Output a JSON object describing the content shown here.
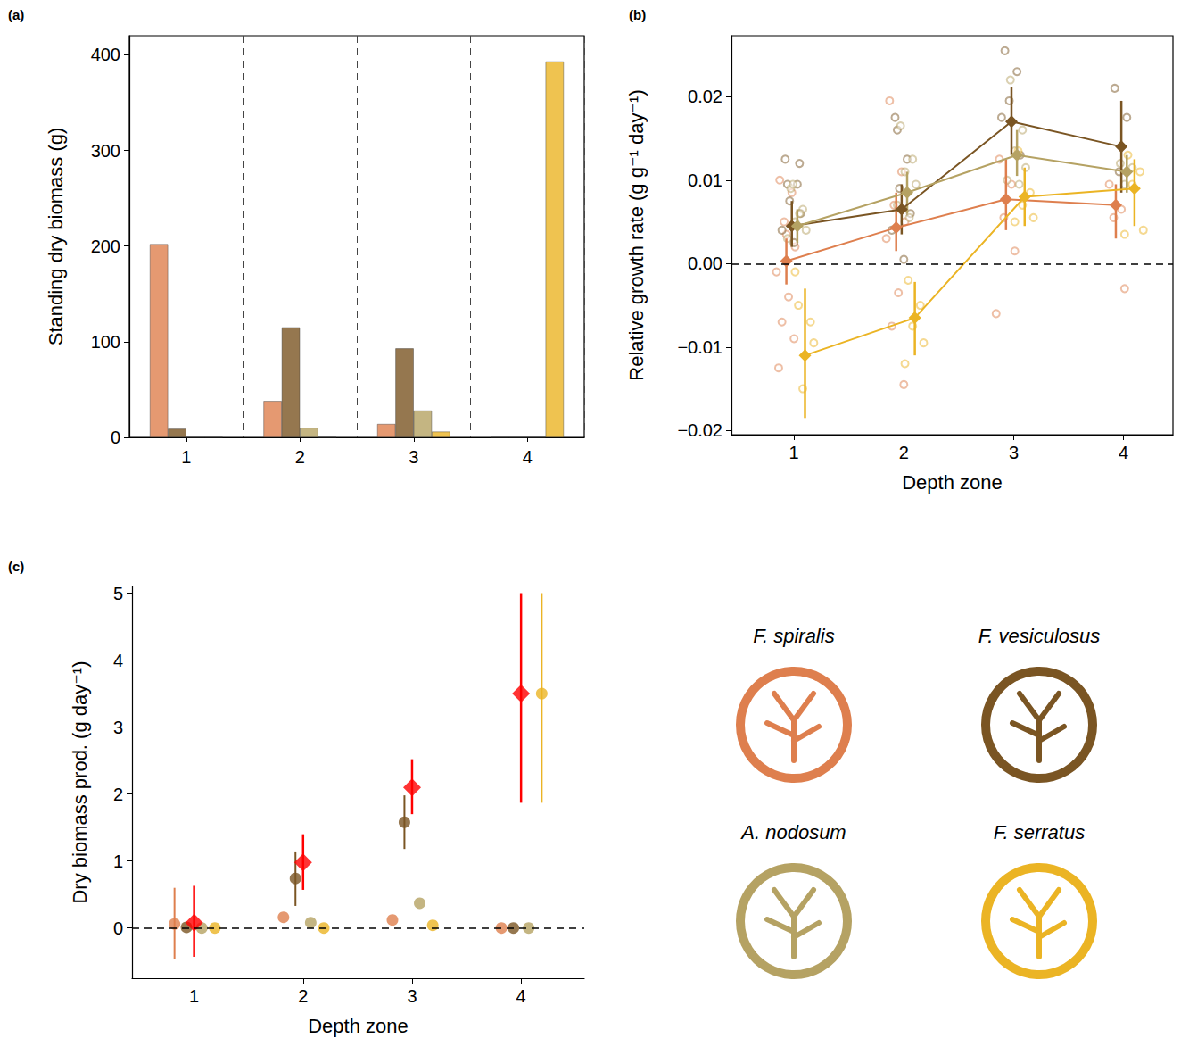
{
  "chart_data": [
    {
      "type": "bar",
      "title": "(a)",
      "ylabel": "Standing dry biomass (g)",
      "categories": [
        "1",
        "2",
        "3",
        "4"
      ],
      "ylim": [
        0,
        420
      ],
      "yticks": [
        0,
        100,
        200,
        300,
        400
      ],
      "legend": "bottom right",
      "series": [
        {
          "name": "F. spiralis",
          "color": "#DE7F4E",
          "values": [
            202,
            38,
            14,
            0
          ]
        },
        {
          "name": "F. vesiculosus",
          "color": "#7A5523",
          "values": [
            9,
            115,
            93,
            0
          ]
        },
        {
          "name": "A. nodosum",
          "color": "#B5A263",
          "values": [
            0,
            10,
            28,
            0
          ]
        },
        {
          "name": "F. serratus",
          "color": "#EBB424",
          "values": [
            0,
            0,
            6,
            393
          ]
        }
      ]
    },
    {
      "type": "line",
      "title": "(b)",
      "xlabel": "Depth zone",
      "ylabel": "Relative growth rate (g g⁻¹ day⁻¹)",
      "x": [
        1,
        2,
        3,
        4
      ],
      "xlim": [
        0.43,
        4.45
      ],
      "xticks": [
        1,
        2,
        3,
        4
      ],
      "ylim": [
        -0.0205,
        0.0273
      ],
      "yticks": [
        {
          "value": -0.02,
          "label": "−0.02"
        },
        {
          "value": -0.01,
          "label": "−0.01"
        },
        {
          "value": 0,
          "label": "0.00"
        },
        0.01,
        0.02
      ],
      "hline": 0,
      "marker": "diamond",
      "series": [
        {
          "name": "F. spiralis",
          "color": "#DE7F4E",
          "values": [
            0.0003,
            0.0043,
            0.0077,
            0.007
          ],
          "error_low": [
            -0.0025,
            0.0015,
            0.004,
            0.003
          ],
          "error_high": [
            0.003,
            0.0085,
            0.0125,
            0.0095
          ],
          "points": [
            [
              0.01,
              0.0085,
              0.005,
              0.002,
              -0.001,
              -0.004,
              -0.007,
              -0.009,
              -0.0125,
              0.0035
            ],
            [
              0.0195,
              0.011,
              0.007,
              0.005,
              0.003,
              -0.0035,
              -0.0075,
              -0.0145
            ],
            [
              0.0125,
              0.0095,
              0.0055,
              0.0015,
              -0.006
            ],
            [
              0.0095,
              0.0065,
              0.0055,
              -0.003
            ]
          ]
        },
        {
          "name": "F. vesiculosus",
          "color": "#7A5523",
          "values": [
            0.0045,
            0.0065,
            0.017,
            0.014
          ],
          "error_low": [
            0.002,
            0.0035,
            0.013,
            0.0085
          ],
          "error_high": [
            0.0075,
            0.0095,
            0.0212,
            0.0195
          ],
          "points": [
            [
              0.0125,
              0.0095,
              0.0075,
              0.006,
              0.004,
              0.0025,
              0.0095,
              0.012
            ],
            [
              0.0175,
              0.0125,
              0.009,
              0.006,
              0.004,
              0.0005,
              0.016
            ],
            [
              0.0255,
              0.023,
              0.0195,
              0.013,
              0.0175
            ],
            [
              0.021,
              0.0175,
              0.011
            ]
          ]
        },
        {
          "name": "A. nodosum",
          "color": "#B5A263",
          "values": [
            0.0045,
            0.0085,
            0.013,
            0.011
          ],
          "error_low": [
            0.0025,
            0.006,
            0.0105,
            0.0085
          ],
          "error_high": [
            0.0065,
            0.011,
            0.016,
            0.013
          ],
          "points": [
            [
              0.009,
              0.0065,
              0.005,
              0.004,
              0.003,
              0.006,
              0.0095
            ],
            [
              0.0165,
              0.0125,
              0.011,
              0.0095,
              0.007,
              0.0055
            ],
            [
              0.022,
              0.016,
              0.0135,
              0.0115,
              0.01,
              0.0095
            ],
            [
              0.012,
              0.0115,
              0.0095
            ]
          ]
        },
        {
          "name": "F. serratus",
          "color": "#EBB424",
          "values": [
            -0.011,
            -0.0065,
            0.008,
            0.009
          ],
          "error_low": [
            -0.0185,
            -0.011,
            0.0045,
            0.0045
          ],
          "error_high": [
            -0.003,
            -0.0022,
            0.0115,
            0.0125
          ],
          "points": [
            [
              -0.005,
              -0.007,
              -0.015,
              -0.0095,
              -0.001
            ],
            [
              -0.002,
              -0.005,
              -0.0075,
              -0.0095,
              -0.012
            ],
            [
              0.0135,
              0.0085,
              0.007,
              0.0055,
              0.005
            ],
            [
              0.013,
              0.011,
              0.0095,
              0.004,
              0.0035
            ]
          ]
        }
      ]
    },
    {
      "type": "scatter",
      "title": "(c)",
      "xlabel": "Depth zone",
      "ylabel": "Dry biomass prod. (g day⁻¹)",
      "x": [
        1,
        2,
        3,
        4
      ],
      "xlim": [
        0.43,
        4.58
      ],
      "xticks": [
        1,
        2,
        3,
        4
      ],
      "ylim": [
        -0.75,
        5.1
      ],
      "yticks": [
        0,
        1,
        2,
        3,
        4,
        5
      ],
      "hline": 0,
      "series": [
        {
          "name": "F. spiralis",
          "color": "#DE7F4E",
          "marker": "circle",
          "values": [
            0.06,
            0.16,
            0.12,
            0
          ],
          "error_low": [
            -0.47,
            null,
            null,
            null
          ],
          "error_high": [
            0.6,
            null,
            null,
            null
          ]
        },
        {
          "name": "F. vesiculosus",
          "color": "#7A5523",
          "marker": "circle",
          "values": [
            0.01,
            0.74,
            1.58,
            0
          ],
          "error_low": [
            null,
            0.33,
            1.18,
            null
          ],
          "error_high": [
            null,
            1.13,
            1.98,
            null
          ]
        },
        {
          "name": "A. nodosum",
          "color": "#B5A263",
          "marker": "circle",
          "values": [
            0,
            0.08,
            0.37,
            0
          ],
          "error_low": [
            null,
            null,
            null,
            null
          ],
          "error_high": [
            null,
            null,
            null,
            null
          ]
        },
        {
          "name": "F. serratus",
          "color": "#EBB424",
          "marker": "circle",
          "values": [
            0,
            0,
            0.04,
            3.5
          ],
          "error_low": [
            null,
            null,
            null,
            1.87
          ],
          "error_high": [
            null,
            null,
            null,
            5.0
          ]
        },
        {
          "color": "#FF0000",
          "marker": "diamond",
          "values": [
            0.08,
            0.98,
            2.1,
            3.5
          ],
          "error_low": [
            -0.43,
            0.57,
            1.7,
            1.87
          ],
          "error_high": [
            0.63,
            1.4,
            2.52,
            5.0
          ]
        }
      ]
    }
  ]
}
